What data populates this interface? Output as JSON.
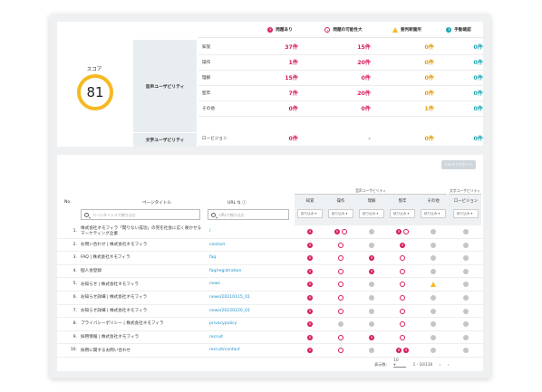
{
  "summary": {
    "score_label": "スコア",
    "score_value": "81",
    "headers": [
      "問題あり",
      "問題の可能性大",
      "要判断箇所",
      "手動確認"
    ],
    "header_icons": [
      "x-circle-icon",
      "o-circle-icon",
      "warning-triangle-icon",
      "info-circle-icon"
    ],
    "categories": [
      "音声ユーザビリティ",
      "文字ユーザビリティ"
    ],
    "rows": [
      {
        "label": "知覚",
        "values": [
          "37件",
          "15件",
          "0件",
          "0件"
        ]
      },
      {
        "label": "操作",
        "values": [
          "1件",
          "20件",
          "0件",
          "0件"
        ]
      },
      {
        "label": "理解",
        "values": [
          "15件",
          "0件",
          "0件",
          "0件"
        ]
      },
      {
        "label": "堅牢",
        "values": [
          "7件",
          "20件",
          "0件",
          "0件"
        ]
      },
      {
        "label": "その他",
        "values": [
          "0件",
          "0件",
          "1件",
          "0件"
        ]
      },
      {
        "label": "ロービジョン",
        "values": [
          "0件",
          "-",
          "0件",
          "0件"
        ]
      }
    ]
  },
  "table": {
    "export_label": "CSVエクスポート",
    "col_no": "No.",
    "col_title": "ページタイトル",
    "col_url": "URL",
    "group_a": "音声ユーザビリティ",
    "group_b": "文字ユーザビリティ",
    "sub_headers": [
      "知覚",
      "操作",
      "理解",
      "堅牢",
      "その他",
      "ロービジョン"
    ],
    "filter_label": "絞り込み",
    "title_search_placeholder": "ページタイトルで絞り込む",
    "url_search_placeholder": "URLで絞り込む",
    "rows": [
      {
        "no": "1.",
        "title": "株式会社ネモフィラ「間りない成功」の完を社会に広く咲かせるマーケティング企業",
        "url": "/",
        "marks": [
          "x",
          "xo",
          "g",
          "xo",
          "g",
          "g"
        ]
      },
      {
        "no": "2.",
        "title": "お問い合わせ | 株式会社ネモフィラ",
        "url": "contact",
        "marks": [
          "x",
          "o",
          "g",
          "x",
          "g",
          "g"
        ]
      },
      {
        "no": "3.",
        "title": "FAQ | 株式会社ネモフィラ",
        "url": "faq",
        "marks": [
          "x",
          "o",
          "x",
          "o",
          "g",
          "g"
        ]
      },
      {
        "no": "4.",
        "title": "個人会登録",
        "url": "faq/registration",
        "marks": [
          "x",
          "o",
          "x",
          "o",
          "g",
          "g"
        ]
      },
      {
        "no": "5.",
        "title": "お知らせ | 株式会社ネモフィラ",
        "url": "news",
        "marks": [
          "x",
          "o",
          "g",
          "o",
          "t",
          "g"
        ]
      },
      {
        "no": "6.",
        "title": "お知らせ詳細 | 株式会社ネモフィラ",
        "url": "news/20210115_01",
        "marks": [
          "x",
          "o",
          "g",
          "o",
          "g",
          "g"
        ]
      },
      {
        "no": "7.",
        "title": "お知らせ詳細 | 株式会社ネモフィラ",
        "url": "news/20220220_01",
        "marks": [
          "x",
          "o",
          "g",
          "o",
          "g",
          "g"
        ]
      },
      {
        "no": "8.",
        "title": "プライバシーポリシー | 株式会社ネモフィラ",
        "url": "privacypolicy",
        "marks": [
          "x",
          "g",
          "g",
          "o",
          "g",
          "g"
        ]
      },
      {
        "no": "9.",
        "title": "採用情報 | 株式会社ネモフィラ",
        "url": "recruit",
        "marks": [
          "x",
          "o",
          "x",
          "o",
          "g",
          "g"
        ]
      },
      {
        "no": "10.",
        "title": "採用に関するお問い合わせ",
        "url": "recruit/contact",
        "marks": [
          "x",
          "o",
          "g",
          "xx",
          "g",
          "g"
        ]
      }
    ],
    "pager_label": "表示数:",
    "pager_value": "10",
    "pager_range": "1 - 10/130"
  },
  "colors": {
    "red": "#d81b60",
    "orange": "#e89a00",
    "teal": "#1aa3b3",
    "score_ring": "#f5b921"
  }
}
